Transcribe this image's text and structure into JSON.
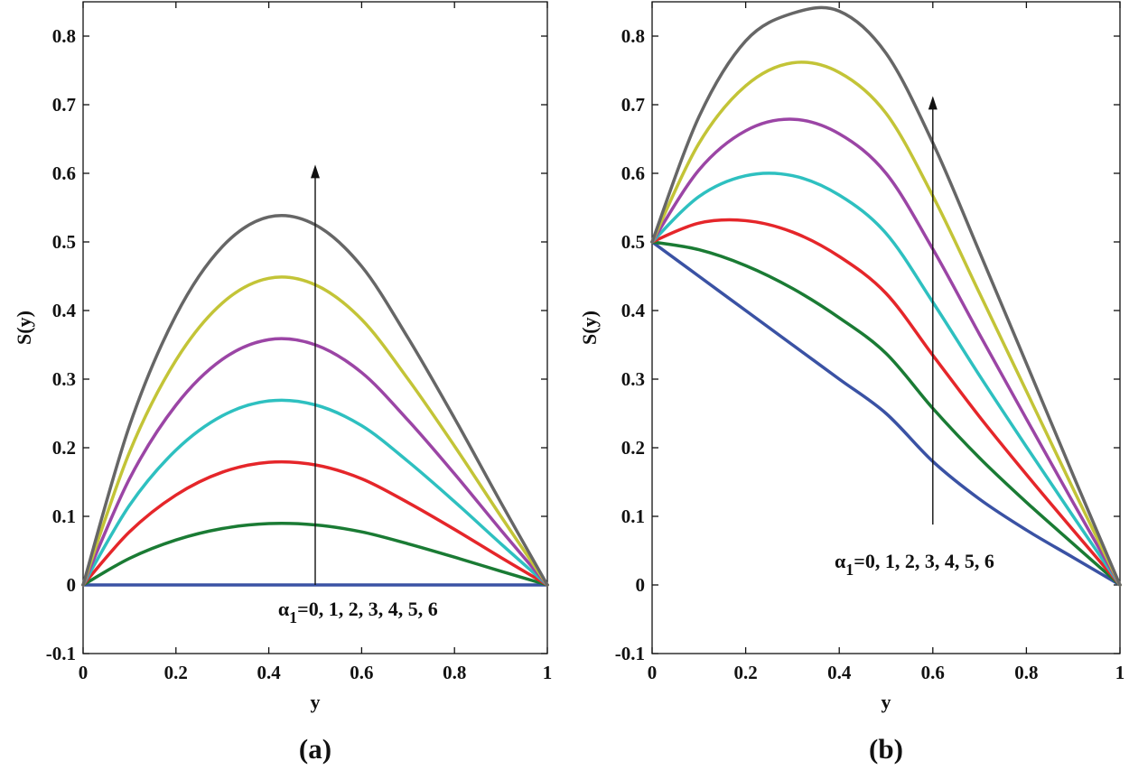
{
  "chart_data": [
    {
      "type": "line",
      "panel_label": "(a)",
      "xlabel": "y",
      "ylabel": "S(y)",
      "xlim": [
        0,
        1
      ],
      "ylim": [
        -0.1,
        0.85
      ],
      "x_ticks": [
        0,
        0.2,
        0.4,
        0.6,
        0.8,
        1
      ],
      "x_tick_labels": [
        "0",
        "0.2",
        "0.4",
        "0.6",
        "0.8",
        "1"
      ],
      "y_ticks": [
        -0.1,
        0,
        0.1,
        0.2,
        0.3,
        0.4,
        0.5,
        0.6,
        0.7,
        0.8
      ],
      "y_tick_labels": [
        "-0.1",
        "0",
        "0.1",
        "0.2",
        "0.3",
        "0.4",
        "0.5",
        "0.6",
        "0.7",
        "0.8"
      ],
      "grid": false,
      "x": [
        0,
        0.1,
        0.2,
        0.3,
        0.4,
        0.5,
        0.6,
        0.7,
        0.8,
        0.9,
        1
      ],
      "series": [
        {
          "name": "α1=0",
          "color": "#3a52a4",
          "values": [
            0,
            0,
            0,
            0,
            0,
            0,
            0,
            0,
            0,
            0,
            0
          ]
        },
        {
          "name": "α1=1",
          "color": "#1a7b34",
          "values": [
            0,
            0.0387,
            0.0655,
            0.0822,
            0.0894,
            0.0875,
            0.0774,
            0.06,
            0.0405,
            0.02,
            0
          ]
        },
        {
          "name": "α1=2",
          "color": "#e5262a",
          "values": [
            0,
            0.0774,
            0.131,
            0.1644,
            0.1788,
            0.175,
            0.1548,
            0.12,
            0.081,
            0.04,
            0
          ]
        },
        {
          "name": "α1=3",
          "color": "#2ec0c0",
          "values": [
            0,
            0.1161,
            0.1965,
            0.2466,
            0.2682,
            0.2625,
            0.2322,
            0.18,
            0.1215,
            0.06,
            0
          ]
        },
        {
          "name": "α1=4",
          "color": "#9b45a5",
          "values": [
            0,
            0.1548,
            0.262,
            0.3288,
            0.3576,
            0.35,
            0.3096,
            0.24,
            0.162,
            0.08,
            0
          ]
        },
        {
          "name": "α1=5",
          "color": "#c3c437",
          "values": [
            0,
            0.1935,
            0.3275,
            0.411,
            0.447,
            0.4375,
            0.387,
            0.3,
            0.2025,
            0.1,
            0
          ]
        },
        {
          "name": "α1=6",
          "color": "#666666",
          "values": [
            0,
            0.2322,
            0.393,
            0.4932,
            0.5364,
            0.525,
            0.4644,
            0.36,
            0.243,
            0.12,
            0
          ]
        }
      ],
      "annotation": {
        "text_alpha": "α",
        "text_sub": "1",
        "text_rest": "=0, 1, 2, 3, 4, 5, 6",
        "arrow_x": 0.5,
        "arrow_from_y": 0,
        "arrow_to_y": 0.61,
        "text_x": 0.42,
        "text_y": -0.045
      }
    },
    {
      "type": "line",
      "panel_label": "(b)",
      "xlabel": "y",
      "ylabel": "S(y)",
      "xlim": [
        0,
        1
      ],
      "ylim": [
        -0.1,
        0.85
      ],
      "x_ticks": [
        0,
        0.2,
        0.4,
        0.6,
        0.8,
        1
      ],
      "x_tick_labels": [
        "0",
        "0.2",
        "0.4",
        "0.6",
        "0.8",
        "1"
      ],
      "y_ticks": [
        -0.1,
        0,
        0.1,
        0.2,
        0.3,
        0.4,
        0.5,
        0.6,
        0.7,
        0.8
      ],
      "y_tick_labels": [
        "-0.1",
        "0",
        "0.1",
        "0.2",
        "0.3",
        "0.4",
        "0.5",
        "0.6",
        "0.7",
        "0.8"
      ],
      "grid": false,
      "x": [
        0,
        0.1,
        0.2,
        0.3,
        0.4,
        0.5,
        0.6,
        0.7,
        0.8,
        0.9,
        1
      ],
      "series": [
        {
          "name": "α1=0",
          "color": "#3a52a4",
          "values": [
            0.5,
            0.45,
            0.4,
            0.35,
            0.3,
            0.25,
            0.18,
            0.125,
            0.08,
            0.04,
            0
          ]
        },
        {
          "name": "α1=1",
          "color": "#1a7b34",
          "values": [
            0.5,
            0.4887,
            0.4655,
            0.4322,
            0.3894,
            0.3375,
            0.2574,
            0.185,
            0.1205,
            0.06,
            0
          ]
        },
        {
          "name": "α1=2",
          "color": "#e5262a",
          "values": [
            0.5,
            0.5274,
            0.531,
            0.5144,
            0.4788,
            0.425,
            0.3348,
            0.245,
            0.161,
            0.08,
            0
          ]
        },
        {
          "name": "α1=3",
          "color": "#2ec0c0",
          "values": [
            0.5,
            0.5661,
            0.5965,
            0.5966,
            0.5682,
            0.5125,
            0.4122,
            0.305,
            0.2015,
            0.1,
            0
          ]
        },
        {
          "name": "α1=4",
          "color": "#9b45a5",
          "values": [
            0.5,
            0.6048,
            0.662,
            0.6788,
            0.6576,
            0.6,
            0.4896,
            0.365,
            0.242,
            0.12,
            0
          ]
        },
        {
          "name": "α1=5",
          "color": "#c3c437",
          "values": [
            0.5,
            0.6435,
            0.7275,
            0.761,
            0.747,
            0.6875,
            0.567,
            0.425,
            0.2825,
            0.14,
            0
          ]
        },
        {
          "name": "α1=6",
          "color": "#666666",
          "values": [
            0.5,
            0.6822,
            0.793,
            0.8332,
            0.8364,
            0.775,
            0.6444,
            0.485,
            0.323,
            0.16,
            0
          ]
        }
      ],
      "annotation": {
        "text_alpha": "α",
        "text_sub": "1",
        "text_rest": "=0, 1, 2, 3, 4, 5, 6",
        "arrow_x": 0.6,
        "arrow_from_y": 0.088,
        "arrow_to_y": 0.71,
        "text_x": 0.39,
        "text_y": 0.025
      }
    }
  ]
}
